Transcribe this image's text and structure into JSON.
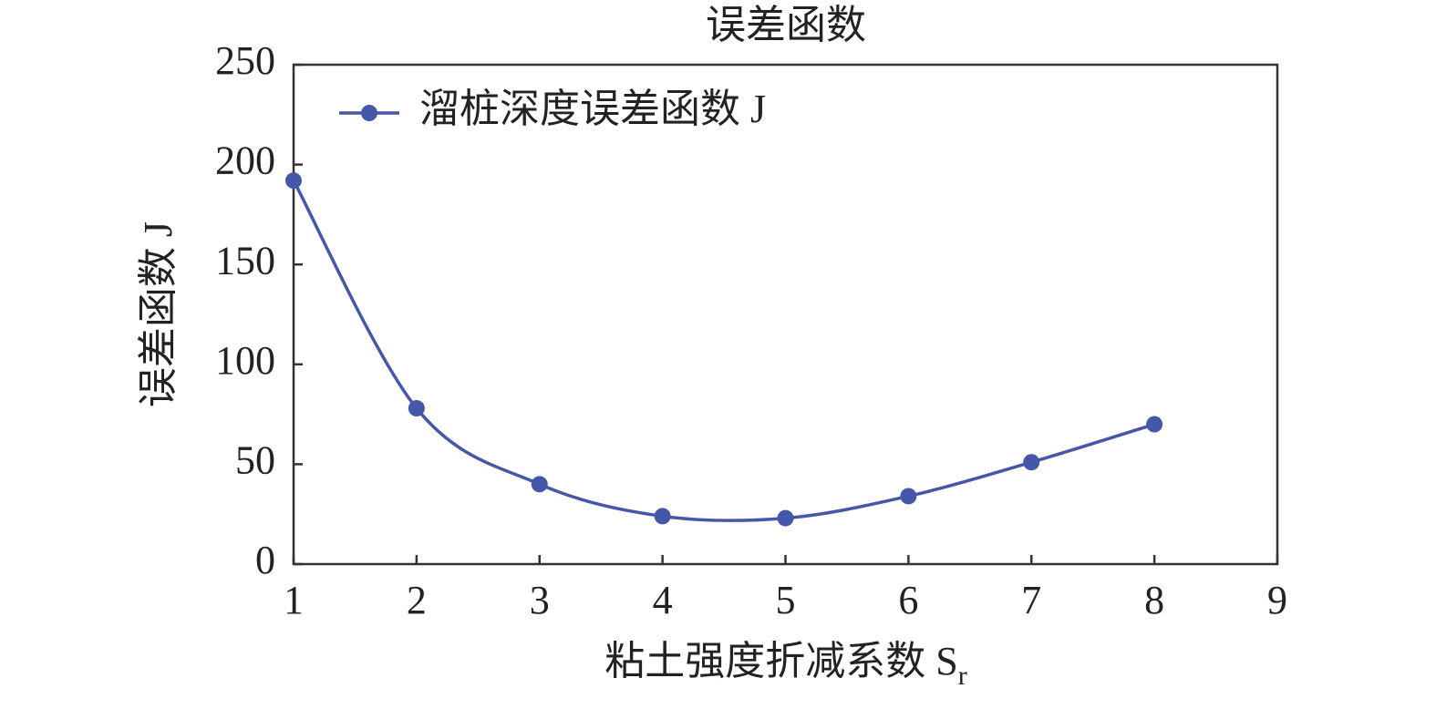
{
  "chart_data": {
    "type": "line",
    "title": "误差函数",
    "xlabel": "粘土强度折减系数 S",
    "xlabel_subscript": "r",
    "ylabel": "误差函数 J",
    "x": [
      1,
      2,
      3,
      4,
      5,
      6,
      7,
      8
    ],
    "series": [
      {
        "name": "溜桩深度误差函数 J",
        "color": "#4557a8",
        "values": [
          192,
          78,
          40,
          24,
          23,
          34,
          51,
          70
        ]
      }
    ],
    "xlim": [
      1,
      9
    ],
    "xticks": [
      1,
      2,
      3,
      4,
      5,
      6,
      7,
      8,
      9
    ],
    "ylim": [
      0,
      250
    ],
    "yticks": [
      0,
      50,
      100,
      150,
      200,
      250
    ],
    "grid": false,
    "legend": "upper left",
    "smooth": true
  }
}
